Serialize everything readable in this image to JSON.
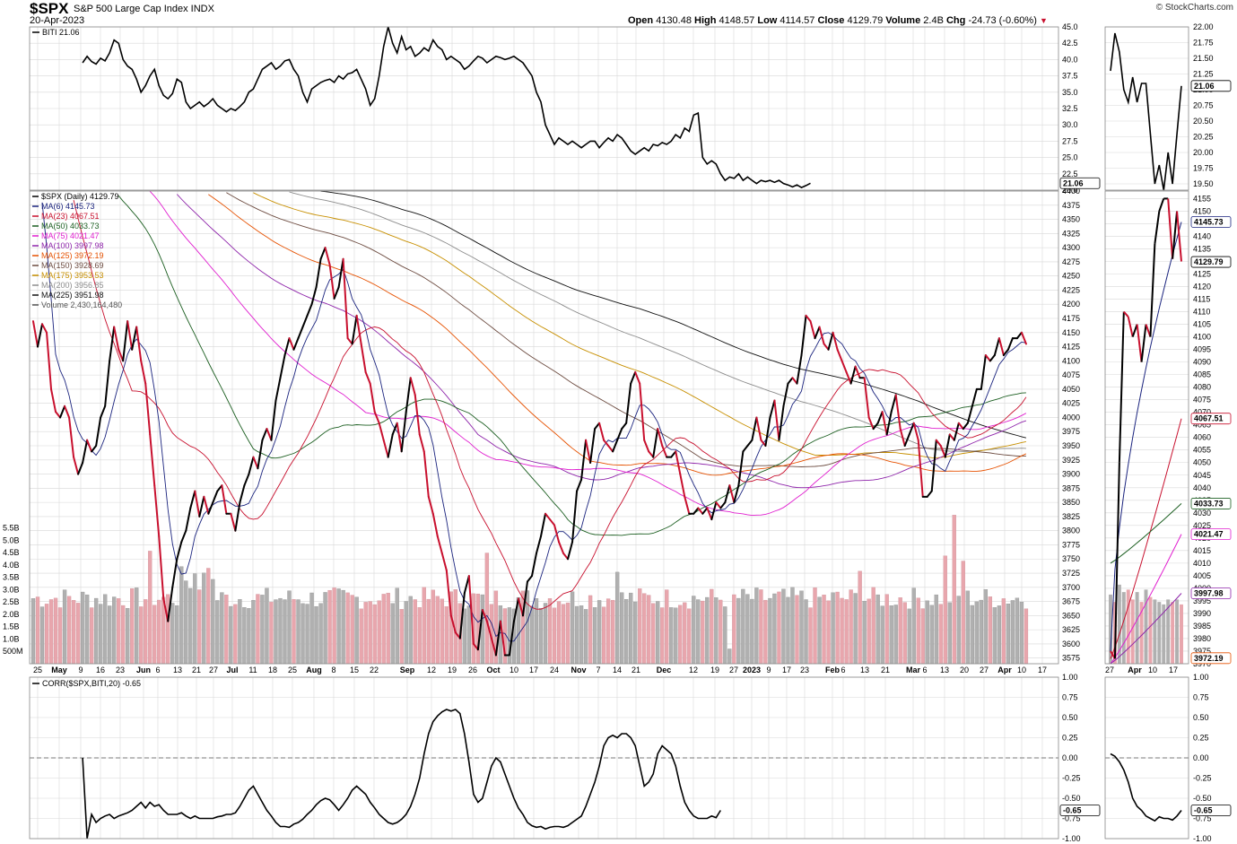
{
  "header": {
    "symbol": "$SPX",
    "name": "S&P 500 Large Cap Index INDX",
    "date": "20-Apr-2023",
    "open_label": "Open",
    "open": "4130.48",
    "high_label": "High",
    "high": "4148.57",
    "low_label": "Low",
    "low": "4114.57",
    "close_label": "Close",
    "close": "4129.79",
    "volume_label": "Volume",
    "volume": "2.4B",
    "chg_label": "Chg",
    "chg": "-24.73 (-0.60%)",
    "brand": "© StockCharts.com"
  },
  "colors": {
    "up": "#000000",
    "down": "#c8102e",
    "grid": "#d8d8d8",
    "vol_up": "#b0b0b0",
    "vol_down": "#e8a6ad"
  },
  "chart_data": [
    {
      "type": "line",
      "panel": "top",
      "legend": "BITI 21.06",
      "last_label": "21.06",
      "y_ticks": [
        "45.0",
        "42.5",
        "40.0",
        "37.5",
        "35.0",
        "32.5",
        "30.0",
        "27.5",
        "25.0",
        "22.5",
        "20.0"
      ],
      "ylim": [
        20,
        45
      ],
      "x_start": 11,
      "y": [
        39.5,
        40.5,
        39.7,
        39.3,
        40.2,
        39.8,
        41.0,
        43.0,
        42.5,
        40.0,
        39.0,
        38.5,
        37.0,
        35.0,
        36.0,
        37.5,
        38.5,
        36.0,
        34.5,
        34.0,
        34.8,
        37.0,
        36.5,
        33.5,
        32.5,
        33.0,
        33.5,
        32.8,
        33.3,
        34.0,
        33.0,
        32.5,
        32.0,
        32.5,
        32.2,
        32.8,
        33.5,
        35.0,
        35.5,
        37.0,
        38.5,
        39.0,
        39.5,
        38.5,
        39.0,
        39.8,
        40.0,
        38.5,
        37.5,
        35.0,
        33.5,
        35.5,
        36.0,
        36.5,
        36.8,
        37.0,
        36.5,
        37.5,
        37.0,
        37.8,
        38.0,
        38.5,
        37.0,
        35.5,
        33.0,
        34.0,
        37.5,
        42.0,
        45.0,
        42.5,
        41.0,
        43.5,
        41.5,
        42.0,
        40.5,
        41.0,
        41.8,
        41.3,
        43.0,
        42.0,
        41.5,
        40.0,
        40.5,
        40.0,
        39.5,
        38.5,
        39.0,
        39.8,
        40.5,
        40.2,
        39.5,
        40.0,
        40.5,
        40.3,
        40.0,
        40.2,
        40.5,
        40.0,
        39.5,
        38.5,
        37.5,
        35.0,
        33.5,
        30.0,
        28.5,
        27.0,
        28.0,
        27.5,
        27.0,
        27.5,
        27.0,
        26.5,
        27.0,
        27.5,
        27.5,
        26.5,
        27.3,
        28.0,
        27.5,
        28.5,
        28.0,
        27.0,
        26.0,
        25.5,
        26.0,
        26.5,
        26.0,
        27.0,
        26.8,
        27.3,
        27.0,
        27.5,
        28.5,
        28.0,
        29.5,
        29.0,
        31.5,
        31.8,
        25.0,
        24.0,
        24.5,
        24.0,
        22.5,
        21.5,
        22.0,
        21.8,
        22.5,
        21.5,
        22.0,
        21.5,
        21.0,
        21.5,
        21.3,
        21.5,
        21.2,
        21.5,
        21.0,
        20.8,
        20.5,
        20.8,
        20.4,
        20.7,
        21.06
      ]
    },
    {
      "type": "line",
      "panel": "top-zoom",
      "y_ticks": [
        "22.00",
        "21.75",
        "21.50",
        "21.25",
        "21.00",
        "20.75",
        "20.50",
        "20.25",
        "20.00",
        "19.75",
        "19.50"
      ],
      "ylim": [
        19.4,
        22.0
      ],
      "y": [
        21.3,
        21.9,
        21.6,
        21.0,
        20.8,
        21.2,
        20.8,
        21.1,
        21.1,
        20.3,
        19.5,
        19.8,
        19.4,
        20.0,
        19.5,
        20.3,
        21.06
      ]
    },
    {
      "type": "line",
      "panel": "main",
      "legend": [
        {
          "name": "$SPX (Daily) 4129.79",
          "color": "#000000"
        },
        {
          "name": "MA(6) 4145.73",
          "color": "#1a237e"
        },
        {
          "name": "MA(23) 4067.51",
          "color": "#c8102e"
        },
        {
          "name": "MA(50) 4033.73",
          "color": "#1b5e20"
        },
        {
          "name": "MA(75) 4021.47",
          "color": "#e01ecf"
        },
        {
          "name": "MA(100) 3997.98",
          "color": "#8e24aa"
        },
        {
          "name": "MA(125) 3972.19",
          "color": "#e65100"
        },
        {
          "name": "MA(150) 3928.69",
          "color": "#6d4c41"
        },
        {
          "name": "MA(175) 3953.53",
          "color": "#c78f00"
        },
        {
          "name": "MA(200) 3956.85",
          "color": "#8c8c8c"
        },
        {
          "name": "MA(225) 3951.98",
          "color": "#111111"
        },
        {
          "name": "Volume 2,430,164,480",
          "color": "#555555"
        }
      ],
      "y_ticks": [
        "4400",
        "4375",
        "4350",
        "4325",
        "4300",
        "4275",
        "4250",
        "4225",
        "4200",
        "4175",
        "4150",
        "4125",
        "4100",
        "4075",
        "4050",
        "4025",
        "4000",
        "3975",
        "3950",
        "3925",
        "3900",
        "3875",
        "3850",
        "3825",
        "3800",
        "3775",
        "3750",
        "3725",
        "3700",
        "3675",
        "3650",
        "3625",
        "3600",
        "3575"
      ],
      "ylim": [
        3565,
        4400
      ],
      "vol_ticks": [
        "5.5B",
        "5.0B",
        "4.5B",
        "4.0B",
        "3.5B",
        "3.0B",
        "2.5B",
        "2.0B",
        "1.5B",
        "1.0B",
        "500M"
      ],
      "x_labels": [
        "25",
        "May",
        "9",
        "16",
        "23",
        "Jun",
        "6",
        "13",
        "21",
        "27",
        "Jul",
        "11",
        "18",
        "25",
        "Aug",
        "8",
        "15",
        "22",
        "Sep",
        "12",
        "19",
        "26",
        "Oct",
        "10",
        "17",
        "24",
        "Nov",
        "7",
        "14",
        "21",
        "Dec",
        "12",
        "19",
        "27",
        "2023",
        "9",
        "17",
        "23",
        "Feb",
        "6",
        "13",
        "21",
        "Mar",
        "6",
        "13",
        "20",
        "27",
        "Apr",
        "10",
        "17"
      ],
      "x_label_pos": [
        42,
        66,
        90,
        112,
        134,
        160,
        176,
        198,
        219,
        238,
        259,
        282,
        304,
        326,
        350,
        372,
        395,
        417,
        454,
        481,
        504,
        527,
        550,
        573,
        595,
        618,
        645,
        667,
        688,
        709,
        740,
        773,
        797,
        818,
        838,
        857,
        877,
        897,
        928,
        940,
        964,
        987,
        1018,
        1031,
        1053,
        1075,
        1097,
        1120,
        1139,
        1162
      ],
      "close": [
        4170,
        4125,
        4165,
        4150,
        4050,
        4010,
        4000,
        4020,
        4000,
        3930,
        3900,
        3920,
        3960,
        3940,
        3950,
        4000,
        4020,
        4100,
        4160,
        4120,
        4100,
        4170,
        4120,
        4160,
        4100,
        4060,
        3970,
        3880,
        3790,
        3680,
        3640,
        3700,
        3750,
        3780,
        3800,
        3840,
        3870,
        3825,
        3860,
        3830,
        3850,
        3870,
        3880,
        3830,
        3830,
        3800,
        3850,
        3880,
        3900,
        3930,
        3910,
        3960,
        3980,
        3960,
        4030,
        4070,
        4110,
        4140,
        4120,
        4140,
        4160,
        4180,
        4200,
        4230,
        4280,
        4300,
        4270,
        4210,
        4230,
        4280,
        4140,
        4130,
        4180,
        4130,
        4080,
        4060,
        4010,
        3990,
        3960,
        3930,
        3970,
        3990,
        3940,
        4010,
        4070,
        4040,
        3970,
        3940,
        3860,
        3830,
        3790,
        3760,
        3730,
        3650,
        3620,
        3610,
        3690,
        3720,
        3600,
        3590,
        3660,
        3640,
        3610,
        3580,
        3640,
        3580,
        3580,
        3640,
        3680,
        3650,
        3710,
        3720,
        3760,
        3790,
        3830,
        3820,
        3810,
        3780,
        3760,
        3750,
        3780,
        3870,
        3890,
        3960,
        3920,
        3980,
        3990,
        3960,
        3950,
        3940,
        3960,
        3980,
        3990,
        4060,
        4080,
        4060,
        3960,
        3940,
        3930,
        3980,
        3950,
        3930,
        3930,
        3940,
        3900,
        3860,
        3830,
        3830,
        3840,
        3830,
        3840,
        3820,
        3850,
        3840,
        3850,
        3880,
        3850,
        3880,
        3940,
        3950,
        3960,
        4000,
        3960,
        3950,
        4000,
        4030,
        3960,
        4020,
        4060,
        4070,
        4060,
        4110,
        4180,
        4170,
        4140,
        4160,
        4130,
        4120,
        4150,
        4120,
        4100,
        4080,
        4060,
        4090,
        4070,
        4070,
        4000,
        3980,
        3990,
        4010,
        3970,
        4010,
        4040,
        3980,
        3950,
        3970,
        3990,
        3960,
        3860,
        3860,
        3870,
        3960,
        3950,
        3930,
        3970,
        3960,
        3990,
        3980,
        3990,
        4020,
        4050,
        4050,
        4110,
        4100,
        4110,
        4140,
        4110,
        4120,
        4140,
        4140,
        4150,
        4130
      ]
    },
    {
      "type": "line",
      "panel": "main-zoom",
      "y_ticks": [
        "4155",
        "4150",
        "4145",
        "4140",
        "4135",
        "4130",
        "4125",
        "4120",
        "4115",
        "4110",
        "4105",
        "4100",
        "4095",
        "4090",
        "4085",
        "4080",
        "4075",
        "4070",
        "4065",
        "4060",
        "4055",
        "4050",
        "4045",
        "4040",
        "4035",
        "4030",
        "4025",
        "4020",
        "4015",
        "4010",
        "4005",
        "4000",
        "3995",
        "3990",
        "3985",
        "3980",
        "3975",
        "3970"
      ],
      "ylim": [
        3970,
        4158
      ],
      "x_labels": [
        "27",
        "Apr",
        "10",
        "17"
      ],
      "price_labels": [
        {
          "text": "4145.73",
          "v": 4145.7,
          "color": "#1a237e"
        },
        {
          "text": "4129.79",
          "v": 4129.8,
          "color": "#000000"
        },
        {
          "text": "4067.51",
          "v": 4067.5,
          "color": "#c8102e"
        },
        {
          "text": "4033.73",
          "v": 4033.7,
          "color": "#1b5e20"
        },
        {
          "text": "4021.47",
          "v": 4021.5,
          "color": "#e01ecf"
        },
        {
          "text": "3997.98",
          "v": 3998.0,
          "color": "#8e24aa"
        },
        {
          "text": "3972.19",
          "v": 3972.2,
          "color": "#e65100"
        }
      ],
      "close": [
        3975,
        3972,
        4050,
        4110,
        4108,
        4100,
        4105,
        4090,
        4105,
        4100,
        4137,
        4150,
        4155,
        4155,
        4131,
        4150,
        4130
      ]
    },
    {
      "type": "line",
      "panel": "correlation",
      "legend": "CORR($SPX,BITI,20) -0.65",
      "last_label": "-0.65",
      "y_ticks": [
        "1.00",
        "0.75",
        "0.50",
        "0.25",
        "0.00",
        "-0.25",
        "-0.50",
        "-0.75",
        "-1.00"
      ],
      "ylim": [
        -1.0,
        1.0
      ],
      "x_start": 11,
      "y": [
        0.0,
        -1.0,
        -0.7,
        -0.8,
        -0.75,
        -0.72,
        -0.7,
        -0.75,
        -0.72,
        -0.7,
        -0.68,
        -0.65,
        -0.6,
        -0.55,
        -0.62,
        -0.55,
        -0.6,
        -0.58,
        -0.65,
        -0.7,
        -0.7,
        -0.7,
        -0.68,
        -0.72,
        -0.75,
        -0.72,
        -0.75,
        -0.75,
        -0.75,
        -0.75,
        -0.73,
        -0.72,
        -0.7,
        -0.7,
        -0.68,
        -0.6,
        -0.5,
        -0.4,
        -0.35,
        -0.45,
        -0.55,
        -0.65,
        -0.72,
        -0.8,
        -0.85,
        -0.85,
        -0.86,
        -0.82,
        -0.8,
        -0.76,
        -0.7,
        -0.65,
        -0.58,
        -0.53,
        -0.5,
        -0.52,
        -0.58,
        -0.65,
        -0.58,
        -0.5,
        -0.4,
        -0.35,
        -0.4,
        -0.45,
        -0.55,
        -0.62,
        -0.7,
        -0.75,
        -0.8,
        -0.82,
        -0.8,
        -0.76,
        -0.7,
        -0.6,
        -0.45,
        -0.25,
        0.05,
        0.3,
        0.45,
        0.52,
        0.57,
        0.6,
        0.58,
        0.6,
        0.55,
        0.3,
        -0.05,
        -0.45,
        -0.55,
        -0.5,
        -0.3,
        -0.1,
        0.0,
        -0.05,
        -0.2,
        -0.35,
        -0.5,
        -0.62,
        -0.7,
        -0.8,
        -0.84,
        -0.86,
        -0.85,
        -0.88,
        -0.86,
        -0.85,
        -0.85,
        -0.86,
        -0.84,
        -0.8,
        -0.76,
        -0.72,
        -0.6,
        -0.45,
        -0.3,
        -0.1,
        0.15,
        0.25,
        0.28,
        0.25,
        0.3,
        0.3,
        0.25,
        0.15,
        -0.1,
        -0.35,
        -0.3,
        -0.2,
        0.05,
        0.15,
        0.1,
        0.05,
        -0.1,
        -0.35,
        -0.55,
        -0.65,
        -0.72,
        -0.75,
        -0.75,
        -0.75,
        -0.72,
        -0.74,
        -0.65
      ]
    },
    {
      "type": "line",
      "panel": "correlation-zoom",
      "y_ticks": [
        "1.00",
        "0.75",
        "0.50",
        "0.25",
        "0.00",
        "-0.25",
        "-0.50",
        "-0.75",
        "-1.00"
      ],
      "ylim": [
        -1.0,
        1.0
      ],
      "y": [
        0.05,
        0.02,
        -0.05,
        -0.15,
        -0.3,
        -0.5,
        -0.6,
        -0.65,
        -0.72,
        -0.75,
        -0.78,
        -0.73,
        -0.75,
        -0.75,
        -0.77,
        -0.72,
        -0.65
      ]
    }
  ]
}
